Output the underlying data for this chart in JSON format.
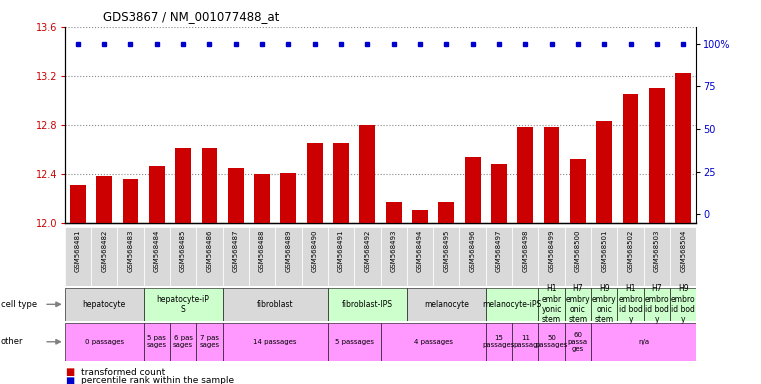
{
  "title": "GDS3867 / NM_001077488_at",
  "samples": [
    "GSM568481",
    "GSM568482",
    "GSM568483",
    "GSM568484",
    "GSM568485",
    "GSM568486",
    "GSM568487",
    "GSM568488",
    "GSM568489",
    "GSM568490",
    "GSM568491",
    "GSM568492",
    "GSM568493",
    "GSM568494",
    "GSM568495",
    "GSM568496",
    "GSM568497",
    "GSM568498",
    "GSM568499",
    "GSM568500",
    "GSM568501",
    "GSM568502",
    "GSM568503",
    "GSM568504"
  ],
  "bar_values": [
    12.31,
    12.38,
    12.36,
    12.46,
    12.61,
    12.61,
    12.45,
    12.4,
    12.41,
    12.65,
    12.65,
    12.8,
    12.17,
    12.1,
    12.17,
    12.54,
    12.48,
    12.78,
    12.78,
    12.52,
    12.83,
    13.05,
    13.1,
    13.22
  ],
  "percentile_values": [
    100,
    100,
    100,
    100,
    100,
    100,
    100,
    100,
    100,
    100,
    100,
    100,
    100,
    100,
    100,
    100,
    100,
    100,
    100,
    100,
    100,
    100,
    100,
    100
  ],
  "ylim": [
    12.0,
    13.6
  ],
  "yticks_left": [
    12.0,
    12.4,
    12.8,
    13.2,
    13.6
  ],
  "yticks_right": [
    0,
    25,
    50,
    75,
    100
  ],
  "bar_color": "#cc0000",
  "percentile_color": "#0000cc",
  "cell_type_groups": [
    {
      "label": "hepatocyte",
      "start": 0,
      "end": 2,
      "color": "#d9d9d9"
    },
    {
      "label": "hepatocyte-iP\nS",
      "start": 3,
      "end": 5,
      "color": "#ccffcc"
    },
    {
      "label": "fibroblast",
      "start": 6,
      "end": 9,
      "color": "#d9d9d9"
    },
    {
      "label": "fibroblast-IPS",
      "start": 10,
      "end": 12,
      "color": "#ccffcc"
    },
    {
      "label": "melanocyte",
      "start": 13,
      "end": 15,
      "color": "#d9d9d9"
    },
    {
      "label": "melanocyte-iPS",
      "start": 16,
      "end": 17,
      "color": "#ccffcc"
    },
    {
      "label": "H1\nembr\nyonic\nstem",
      "start": 18,
      "end": 18,
      "color": "#ccffcc"
    },
    {
      "label": "H7\nembry\nonic\nstem",
      "start": 19,
      "end": 19,
      "color": "#ccffcc"
    },
    {
      "label": "H9\nembry\nonic\nstem",
      "start": 20,
      "end": 20,
      "color": "#ccffcc"
    },
    {
      "label": "H1\nembro\nid bod\ny",
      "start": 21,
      "end": 21,
      "color": "#ccffcc"
    },
    {
      "label": "H7\nembro\nid bod\ny",
      "start": 22,
      "end": 22,
      "color": "#ccffcc"
    },
    {
      "label": "H9\nembro\nid bod\ny",
      "start": 23,
      "end": 23,
      "color": "#ccffcc"
    }
  ],
  "other_groups": [
    {
      "label": "0 passages",
      "start": 0,
      "end": 2,
      "color": "#ff99ff"
    },
    {
      "label": "5 pas\nsages",
      "start": 3,
      "end": 3,
      "color": "#ff99ff"
    },
    {
      "label": "6 pas\nsages",
      "start": 4,
      "end": 4,
      "color": "#ff99ff"
    },
    {
      "label": "7 pas\nsages",
      "start": 5,
      "end": 5,
      "color": "#ff99ff"
    },
    {
      "label": "14 passages",
      "start": 6,
      "end": 9,
      "color": "#ff99ff"
    },
    {
      "label": "5 passages",
      "start": 10,
      "end": 11,
      "color": "#ff99ff"
    },
    {
      "label": "4 passages",
      "start": 12,
      "end": 15,
      "color": "#ff99ff"
    },
    {
      "label": "15\npassages",
      "start": 16,
      "end": 16,
      "color": "#ff99ff"
    },
    {
      "label": "11\npassag",
      "start": 17,
      "end": 17,
      "color": "#ff99ff"
    },
    {
      "label": "50\npassages",
      "start": 18,
      "end": 18,
      "color": "#ff99ff"
    },
    {
      "label": "60\npassa\nges",
      "start": 19,
      "end": 19,
      "color": "#ff99ff"
    },
    {
      "label": "n/a",
      "start": 20,
      "end": 23,
      "color": "#ff99ff"
    }
  ],
  "tick_label_color": "#cc0000",
  "right_tick_color": "#0000cc",
  "background_color": "#ffffff",
  "dotted_line_color": "#888888",
  "sample_bg_color": "#d9d9d9"
}
